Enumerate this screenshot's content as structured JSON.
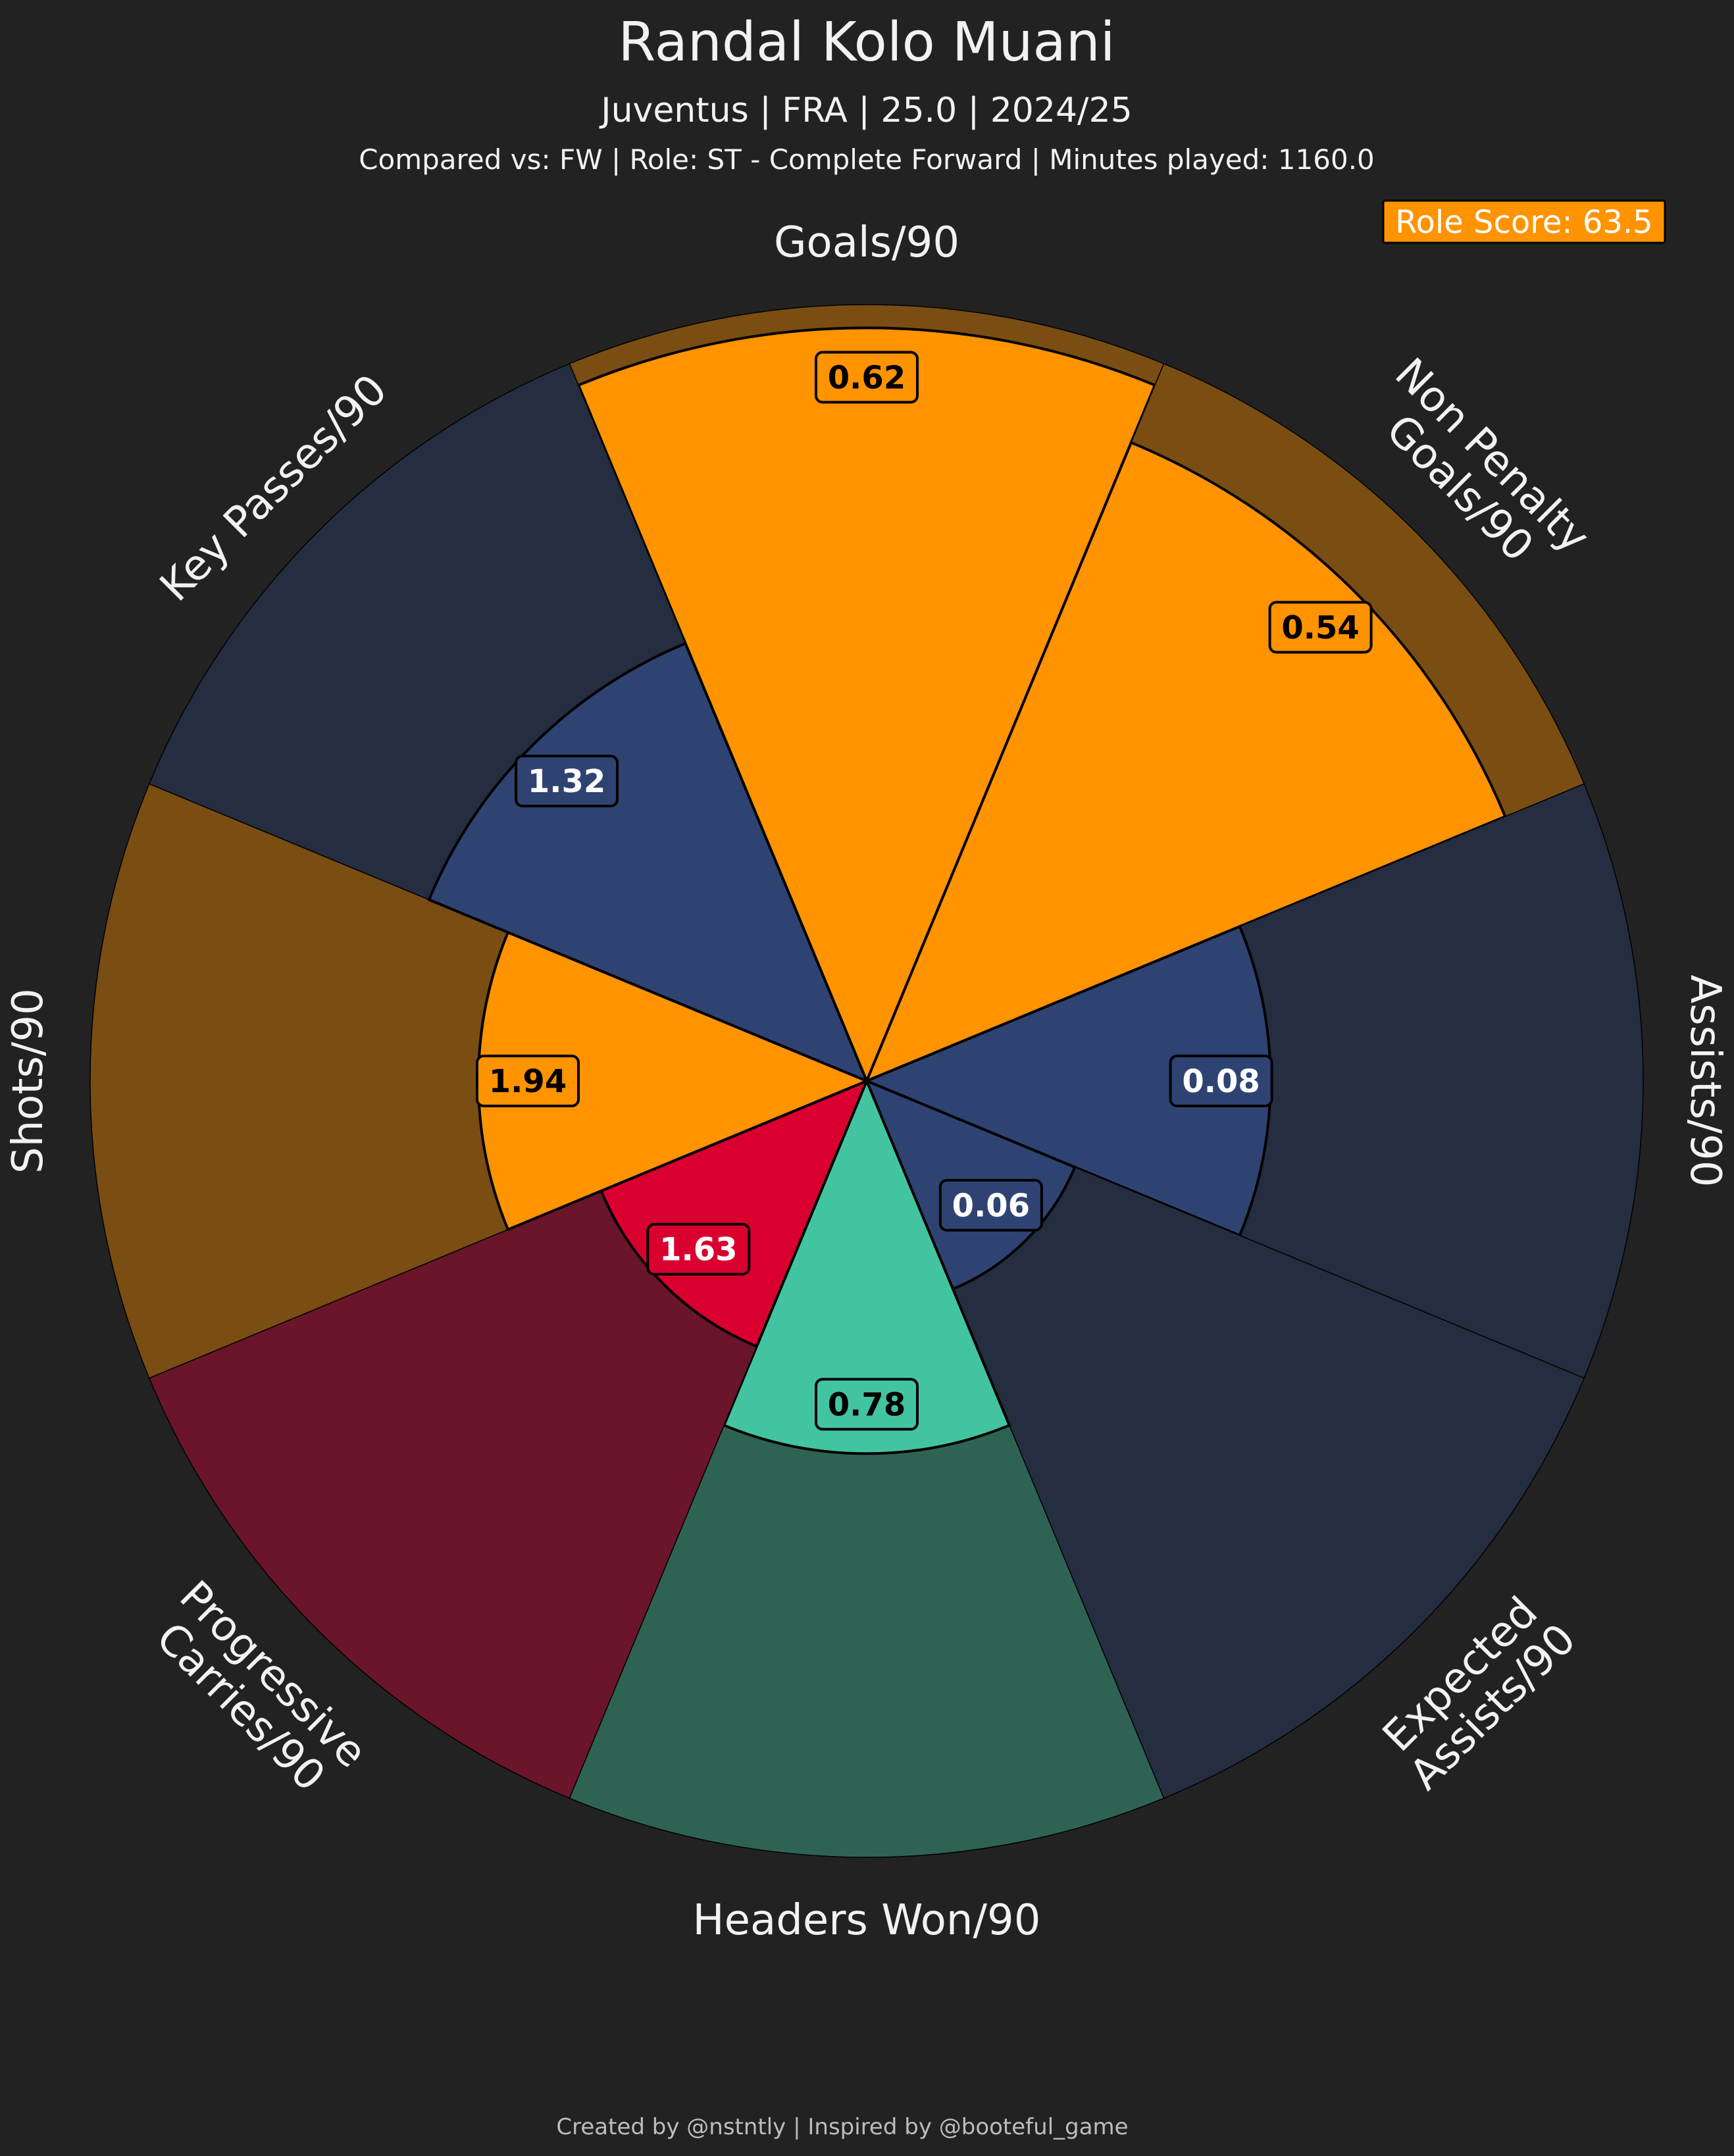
{
  "header": {
    "title": "Randal Kolo Muani",
    "subtitle": "Juventus | FRA | 25.0 | 2024/25",
    "comparison": "Compared vs: FW | Role: ST - Complete Forward | Minutes played: 1160.0"
  },
  "role_score": {
    "label": "Role Score: 63.5",
    "color": "#ff9300"
  },
  "footer": "Created by @nstntly | Inspired by @booteful_game",
  "chart_data": {
    "type": "pie",
    "subtype": "pizza-radar",
    "categories": [
      {
        "label_lines": [
          "Goals/90"
        ],
        "value": 0.62,
        "percentile": 97,
        "fill": "#ff9300",
        "bg": "#7a4d12",
        "text_color": "#000000"
      },
      {
        "label_lines": [
          "Non Penalty",
          "Goals/90"
        ],
        "value": 0.54,
        "percentile": 89,
        "fill": "#ff9300",
        "bg": "#7a4d12",
        "text_color": "#000000"
      },
      {
        "label_lines": [
          "Assists/90"
        ],
        "value": 0.08,
        "percentile": 52,
        "fill": "#2f4373",
        "bg": "#252d40",
        "text_color": "#ffffff"
      },
      {
        "label_lines": [
          "Expected",
          "Assists/90"
        ],
        "value": 0.06,
        "percentile": 29,
        "fill": "#2f4373",
        "bg": "#252d40",
        "text_color": "#ffffff"
      },
      {
        "label_lines": [
          "Headers Won/90"
        ],
        "value": 0.78,
        "percentile": 48,
        "fill": "#43c4a1",
        "bg": "#2e6354",
        "text_color": "#000000"
      },
      {
        "label_lines": [
          "Progressive",
          "Carries/90"
        ],
        "value": 1.63,
        "percentile": 37,
        "fill": "#d90030",
        "bg": "#6a1529",
        "text_color": "#ffffff"
      },
      {
        "label_lines": [
          "Shots/90"
        ],
        "value": 1.94,
        "percentile": 50,
        "fill": "#ff9300",
        "bg": "#7a4d12",
        "text_color": "#000000"
      },
      {
        "label_lines": [
          "Key Passes/90"
        ],
        "value": 1.32,
        "percentile": 61,
        "fill": "#2f4373",
        "bg": "#252d40",
        "text_color": "#ffffff"
      }
    ],
    "percentile_range": [
      0,
      100
    ],
    "grid": false,
    "legend": "none"
  }
}
